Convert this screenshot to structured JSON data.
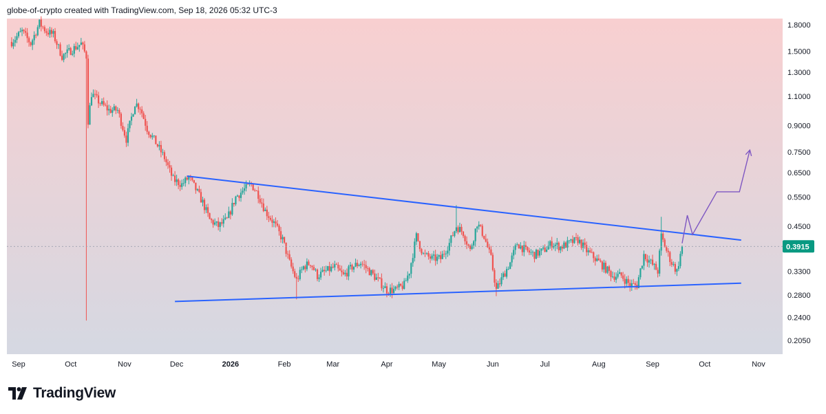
{
  "header": {
    "attribution": "globe-of-crypto created with TradingView.com, Sep 18, 2026 05:32 UTC-3"
  },
  "footer": {
    "brand": "TradingView",
    "logo_icon": "tradingview-logo-icon"
  },
  "colors": {
    "up": "#26a69a",
    "down": "#ef5350",
    "trendline": "#2962ff",
    "projection": "#7e57c2",
    "price_badge": "#089981",
    "bg_top": "#f8cfd0",
    "bg_bottom": "#d5d8e2"
  },
  "chart_data": {
    "type": "candlestick",
    "title": "",
    "xlabel": "",
    "ylabel": "",
    "y_scale": "log",
    "ylim": [
      0.19,
      1.9
    ],
    "y_ticks": [
      "1.8000",
      "1.5000",
      "1.3000",
      "1.1000",
      "0.9000",
      "0.7500",
      "0.6500",
      "0.5500",
      "0.4500",
      "0.3915",
      "0.3300",
      "0.2800",
      "0.2400",
      "0.2050"
    ],
    "x_ticks": [
      {
        "label": "Sep",
        "date": "2025-09-01",
        "bold": false
      },
      {
        "label": "Oct",
        "date": "2025-10-01",
        "bold": false
      },
      {
        "label": "Nov",
        "date": "2025-11-01",
        "bold": false
      },
      {
        "label": "Dec",
        "date": "2025-12-01",
        "bold": false
      },
      {
        "label": "2026",
        "date": "2026-01-01",
        "bold": true
      },
      {
        "label": "Feb",
        "date": "2026-02-01",
        "bold": false
      },
      {
        "label": "Mar",
        "date": "2026-03-01",
        "bold": false
      },
      {
        "label": "Apr",
        "date": "2026-04-01",
        "bold": false
      },
      {
        "label": "May",
        "date": "2026-05-01",
        "bold": false
      },
      {
        "label": "Jun",
        "date": "2026-06-01",
        "bold": false
      },
      {
        "label": "Jul",
        "date": "2026-07-01",
        "bold": false
      },
      {
        "label": "Aug",
        "date": "2026-08-01",
        "bold": false
      },
      {
        "label": "Sep",
        "date": "2026-09-01",
        "bold": false
      },
      {
        "label": "Oct",
        "date": "2026-10-01",
        "bold": false
      },
      {
        "label": "Nov",
        "date": "2026-11-01",
        "bold": false
      }
    ],
    "last_price": "0.3915",
    "close_path": [
      [
        "2025-08-28",
        1.6
      ],
      [
        "2025-09-03",
        1.72
      ],
      [
        "2025-09-08",
        1.58
      ],
      [
        "2025-09-13",
        1.82
      ],
      [
        "2025-09-17",
        1.72
      ],
      [
        "2025-09-21",
        1.68
      ],
      [
        "2025-09-26",
        1.45
      ],
      [
        "2025-10-02",
        1.52
      ],
      [
        "2025-10-07",
        1.58
      ],
      [
        "2025-10-10",
        1.45
      ],
      [
        "2025-10-11",
        0.93
      ],
      [
        "2025-10-13",
        1.12
      ],
      [
        "2025-10-18",
        1.05
      ],
      [
        "2025-10-23",
        1.0
      ],
      [
        "2025-10-28",
        1.0
      ],
      [
        "2025-11-02",
        0.82
      ],
      [
        "2025-11-07",
        1.05
      ],
      [
        "2025-11-10",
        1.02
      ],
      [
        "2025-11-14",
        0.88
      ],
      [
        "2025-11-19",
        0.8
      ],
      [
        "2025-11-24",
        0.72
      ],
      [
        "2025-11-29",
        0.62
      ],
      [
        "2025-12-04",
        0.6
      ],
      [
        "2025-12-08",
        0.63
      ],
      [
        "2025-12-12",
        0.58
      ],
      [
        "2025-12-16",
        0.53
      ],
      [
        "2025-12-20",
        0.47
      ],
      [
        "2025-12-25",
        0.45
      ],
      [
        "2025-12-30",
        0.47
      ],
      [
        "2026-01-04",
        0.55
      ],
      [
        "2026-01-09",
        0.58
      ],
      [
        "2026-01-13",
        0.6
      ],
      [
        "2026-01-17",
        0.56
      ],
      [
        "2026-01-21",
        0.5
      ],
      [
        "2026-01-26",
        0.46
      ],
      [
        "2026-01-31",
        0.41
      ],
      [
        "2026-02-04",
        0.35
      ],
      [
        "2026-02-08",
        0.31
      ],
      [
        "2026-02-12",
        0.34
      ],
      [
        "2026-02-16",
        0.35
      ],
      [
        "2026-02-20",
        0.32
      ],
      [
        "2026-02-25",
        0.33
      ],
      [
        "2026-03-02",
        0.34
      ],
      [
        "2026-03-07",
        0.32
      ],
      [
        "2026-03-12",
        0.34
      ],
      [
        "2026-03-17",
        0.35
      ],
      [
        "2026-03-22",
        0.33
      ],
      [
        "2026-03-27",
        0.31
      ],
      [
        "2026-04-01",
        0.29
      ],
      [
        "2026-04-06",
        0.29
      ],
      [
        "2026-04-11",
        0.3
      ],
      [
        "2026-04-14",
        0.33
      ],
      [
        "2026-04-18",
        0.42
      ],
      [
        "2026-04-22",
        0.37
      ],
      [
        "2026-04-27",
        0.36
      ],
      [
        "2026-05-02",
        0.36
      ],
      [
        "2026-05-07",
        0.4
      ],
      [
        "2026-05-11",
        0.45
      ],
      [
        "2026-05-15",
        0.43
      ],
      [
        "2026-05-19",
        0.38
      ],
      [
        "2026-05-23",
        0.46
      ],
      [
        "2026-05-27",
        0.42
      ],
      [
        "2026-05-31",
        0.36
      ],
      [
        "2026-06-03",
        0.29
      ],
      [
        "2026-06-07",
        0.32
      ],
      [
        "2026-06-11",
        0.35
      ],
      [
        "2026-06-15",
        0.4
      ],
      [
        "2026-06-20",
        0.38
      ],
      [
        "2026-06-25",
        0.37
      ],
      [
        "2026-06-30",
        0.38
      ],
      [
        "2026-07-05",
        0.4
      ],
      [
        "2026-07-10",
        0.39
      ],
      [
        "2026-07-15",
        0.4
      ],
      [
        "2026-07-20",
        0.41
      ],
      [
        "2026-07-25",
        0.38
      ],
      [
        "2026-07-30",
        0.36
      ],
      [
        "2026-08-04",
        0.34
      ],
      [
        "2026-08-09",
        0.32
      ],
      [
        "2026-08-14",
        0.32
      ],
      [
        "2026-08-19",
        0.3
      ],
      [
        "2026-08-23",
        0.3
      ],
      [
        "2026-08-27",
        0.37
      ],
      [
        "2026-08-31",
        0.35
      ],
      [
        "2026-09-04",
        0.33
      ],
      [
        "2026-09-06",
        0.42
      ],
      [
        "2026-09-09",
        0.38
      ],
      [
        "2026-09-12",
        0.35
      ],
      [
        "2026-09-15",
        0.33
      ],
      [
        "2026-09-18",
        0.3915
      ]
    ],
    "upper_trendline": [
      [
        "2025-12-07",
        0.635
      ],
      [
        "2026-10-22",
        0.409
      ]
    ],
    "lower_trendline": [
      [
        "2025-11-30",
        0.268
      ],
      [
        "2026-10-22",
        0.304
      ]
    ],
    "projection_path": [
      [
        "2026-09-18",
        0.4
      ],
      [
        "2026-09-21",
        0.485
      ],
      [
        "2026-09-24",
        0.425
      ],
      [
        "2026-10-08",
        0.57
      ],
      [
        "2026-10-21",
        0.57
      ],
      [
        "2026-10-27",
        0.76
      ]
    ]
  }
}
